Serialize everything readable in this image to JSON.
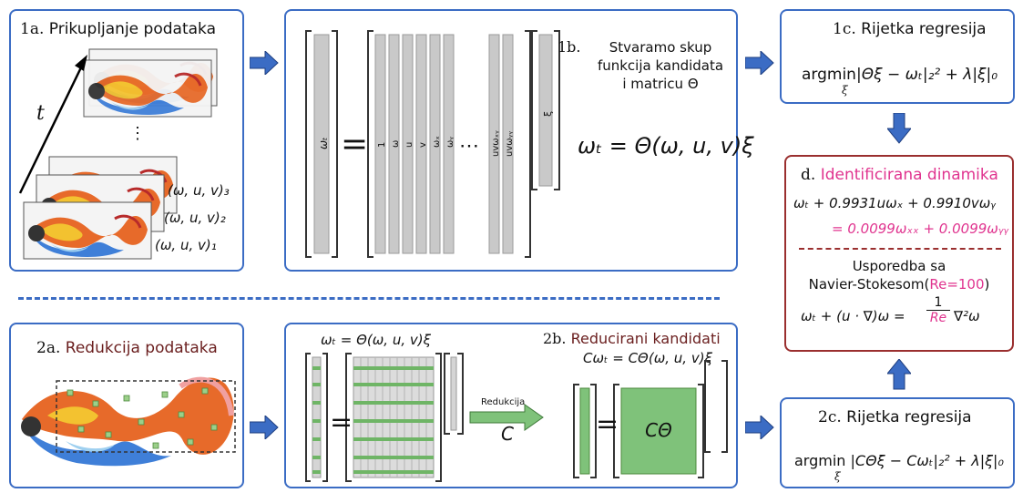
{
  "panel_1a": {
    "title_num": "1a.",
    "title_text": "Prikupljanje podataka",
    "time_label": "t",
    "snap_labels": [
      "(ω, u, v)₃",
      "(ω, u, v)₂",
      "(ω, u, v)₁"
    ],
    "dots": "⋮"
  },
  "panel_1b": {
    "title_num": "1b.",
    "title_line1": "Stvaramo skup",
    "title_line2": "funkcija kandidata",
    "title_line3": "i matricu Θ",
    "equation": "ωₜ = Θ(ω, u, v)ξ",
    "lhs_label": "ωₜ",
    "equals": "=",
    "col_labels": [
      "1",
      "ω",
      "u",
      "v",
      "ωₓ",
      "ωᵧ"
    ],
    "ellipsis": "⋯",
    "last_col_labels": [
      "uvωₓᵧ",
      "uvωᵧᵧ"
    ],
    "xi_label": "ξ"
  },
  "panel_1c": {
    "title_num": "1c.",
    "title_text": "Rijetka regresija",
    "argmin": "argmin",
    "sub": "ξ",
    "expr": "|Θξ − ωₜ|₂² + λ|ξ|₀"
  },
  "panel_d": {
    "title_num": "d.",
    "title_text": "Identificirana dinamika",
    "eq_line1": "ωₜ + 0.9931uωₓ + 0.9910vωᵧ",
    "eq_line2": "= 0.0099ωₓₓ + 0.0099ωᵧᵧ",
    "compare_line1": "Usporedba sa",
    "compare_line2_pre": "Navier-Stokesom(",
    "compare_re": "Re=100",
    "compare_line2_post": ")",
    "ns_lhs": "ωₜ + (u · ∇)ω =",
    "ns_num": "1",
    "ns_den": "Re",
    "ns_rhs": "∇²ω"
  },
  "panel_2a": {
    "title_num": "2a.",
    "title_text": "Redukcija podataka"
  },
  "panel_2b": {
    "top_equation": "ωₜ = Θ(ω, u, v)ξ",
    "title_num": "2b.",
    "title_text": "Reducirani kandidati",
    "reduced_eq": "Cωₜ = CΘ(ω, u, v)ξ",
    "arrow_label": "Redukcija",
    "arrow_symbol": "C",
    "equals": "=",
    "block_label": "CΘ"
  },
  "panel_2c": {
    "title_num": "2c.",
    "title_text": "Rijetka regresija",
    "argmin": "argmin",
    "sub": "ξ",
    "expr": "|CΘξ − Cωₜ|₂² + λ|ξ|₀"
  },
  "colors": {
    "panel_border": "#3b6cc4",
    "result_border": "#9a2f2f",
    "highlight": "#e0348f",
    "arrow_fill": "#3b6cc4",
    "reduction_green": "#7fc27a"
  }
}
